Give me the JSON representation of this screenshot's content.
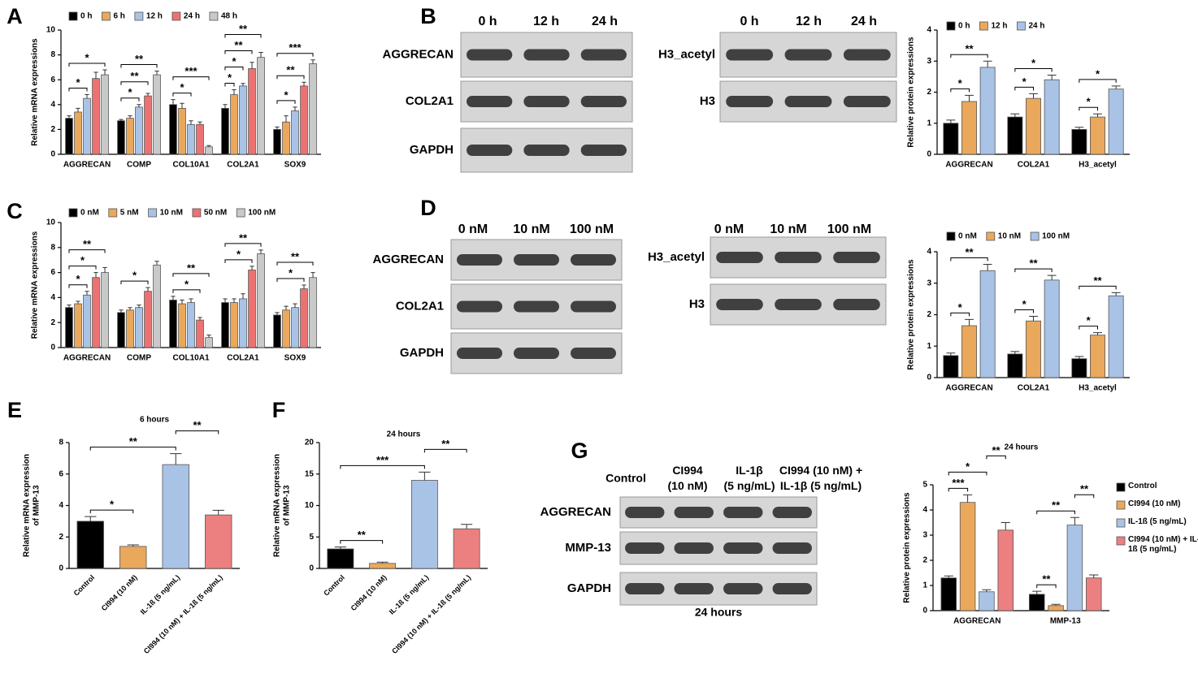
{
  "chart_data": [
    {
      "panel": "A",
      "type": "grouped-bar",
      "ylabel": "Relative mRNA expressions",
      "categories": [
        "AGGRECAN",
        "COMP",
        "COL10A1",
        "COL2A1",
        "SOX9"
      ],
      "series": [
        {
          "name": "0 h",
          "color": "#000000",
          "values": [
            2.9,
            2.7,
            4.0,
            3.7,
            2.0
          ],
          "errors": [
            0.2,
            0.1,
            0.4,
            0.3,
            0.2
          ]
        },
        {
          "name": "6 h",
          "color": "#e9a85c",
          "values": [
            3.4,
            2.9,
            3.7,
            4.8,
            2.6
          ],
          "errors": [
            0.3,
            0.2,
            0.4,
            0.4,
            0.5
          ]
        },
        {
          "name": "12 h",
          "color": "#a9c3e6",
          "values": [
            4.5,
            3.8,
            2.4,
            5.5,
            3.5
          ],
          "errors": [
            0.3,
            0.2,
            0.3,
            0.2,
            0.3
          ]
        },
        {
          "name": "24 h",
          "color": "#ec7272",
          "values": [
            6.1,
            4.7,
            2.4,
            6.9,
            5.5
          ],
          "errors": [
            0.5,
            0.2,
            0.2,
            0.5,
            0.3
          ]
        },
        {
          "name": "48 h",
          "color": "#c9c9c9",
          "values": [
            6.4,
            6.4,
            0.6,
            7.8,
            7.3
          ],
          "errors": [
            0.4,
            0.3,
            0.1,
            0.4,
            0.3
          ]
        }
      ],
      "ylim": [
        0,
        10
      ],
      "yticks": [
        0,
        2,
        4,
        6,
        8,
        10
      ],
      "legend": "top",
      "brackets": [
        {
          "label": "*",
          "group": 0,
          "from": 0,
          "to": 2
        },
        {
          "label": "*",
          "group": 0,
          "from": 0,
          "to": 4
        },
        {
          "label": "*",
          "group": 1,
          "from": 0,
          "to": 2
        },
        {
          "label": "**",
          "group": 1,
          "from": 0,
          "to": 3
        },
        {
          "label": "**",
          "group": 1,
          "from": 0,
          "to": 4
        },
        {
          "label": "*",
          "group": 2,
          "from": 0,
          "to": 2
        },
        {
          "label": "***",
          "group": 2,
          "from": 0,
          "to": 4
        },
        {
          "label": "*",
          "group": 3,
          "from": 0,
          "to": 1
        },
        {
          "label": "*",
          "group": 3,
          "from": 0,
          "to": 2
        },
        {
          "label": "**",
          "group": 3,
          "from": 0,
          "to": 3
        },
        {
          "label": "**",
          "group": 3,
          "from": 0,
          "to": 4
        },
        {
          "label": "*",
          "group": 4,
          "from": 0,
          "to": 2
        },
        {
          "label": "**",
          "group": 4,
          "from": 0,
          "to": 3
        },
        {
          "label": "***",
          "group": 4,
          "from": 0,
          "to": 4
        }
      ]
    },
    {
      "panel": "B",
      "type": "grouped-bar",
      "ylabel": "Relative protein expressions",
      "categories": [
        "AGGRECAN",
        "COL2A1",
        "H3_acetyl"
      ],
      "series": [
        {
          "name": "0 h",
          "color": "#000000",
          "values": [
            1.0,
            1.2,
            0.8
          ],
          "errors": [
            0.1,
            0.1,
            0.07
          ]
        },
        {
          "name": "12 h",
          "color": "#e9a85c",
          "values": [
            1.7,
            1.8,
            1.2
          ],
          "errors": [
            0.2,
            0.15,
            0.1
          ]
        },
        {
          "name": "24 h",
          "color": "#a9c3e6",
          "values": [
            2.8,
            2.4,
            2.1
          ],
          "errors": [
            0.2,
            0.15,
            0.1
          ]
        }
      ],
      "ylim": [
        0,
        4
      ],
      "yticks": [
        0,
        1,
        2,
        3,
        4
      ],
      "legend": "top",
      "brackets": [
        {
          "label": "*",
          "group": 0,
          "from": 0,
          "to": 1
        },
        {
          "label": "**",
          "group": 0,
          "from": 0,
          "to": 2
        },
        {
          "label": "*",
          "group": 1,
          "from": 0,
          "to": 1
        },
        {
          "label": "*",
          "group": 1,
          "from": 0,
          "to": 2
        },
        {
          "label": "*",
          "group": 2,
          "from": 0,
          "to": 1
        },
        {
          "label": "*",
          "group": 2,
          "from": 0,
          "to": 2
        }
      ]
    },
    {
      "panel": "C",
      "type": "grouped-bar",
      "ylabel": "Relative mRNA expressions",
      "categories": [
        "AGGRECAN",
        "COMP",
        "COL10A1",
        "COL2A1",
        "SOX9"
      ],
      "series": [
        {
          "name": "0 nM",
          "color": "#000000",
          "values": [
            3.2,
            2.8,
            3.8,
            3.6,
            2.6
          ],
          "errors": [
            0.2,
            0.2,
            0.3,
            0.3,
            0.2
          ]
        },
        {
          "name": "5 nM",
          "color": "#e9a85c",
          "values": [
            3.5,
            3.0,
            3.5,
            3.6,
            3.0
          ],
          "errors": [
            0.2,
            0.2,
            0.3,
            0.3,
            0.3
          ]
        },
        {
          "name": "10 nM",
          "color": "#a9c3e6",
          "values": [
            4.2,
            3.2,
            3.6,
            3.9,
            3.2
          ],
          "errors": [
            0.3,
            0.2,
            0.3,
            0.4,
            0.3
          ]
        },
        {
          "name": "50 nM",
          "color": "#ec7272",
          "values": [
            5.6,
            4.5,
            2.2,
            6.2,
            4.7
          ],
          "errors": [
            0.4,
            0.3,
            0.2,
            0.3,
            0.3
          ]
        },
        {
          "name": "100 nM",
          "color": "#c9c9c9",
          "values": [
            6.0,
            6.6,
            0.8,
            7.5,
            5.6
          ],
          "errors": [
            0.4,
            0.3,
            0.2,
            0.3,
            0.4
          ]
        }
      ],
      "ylim": [
        0,
        10
      ],
      "yticks": [
        0,
        2,
        4,
        6,
        8,
        10
      ],
      "legend": "top",
      "brackets": [
        {
          "label": "*",
          "group": 0,
          "from": 0,
          "to": 2
        },
        {
          "label": "*",
          "group": 0,
          "from": 0,
          "to": 3
        },
        {
          "label": "**",
          "group": 0,
          "from": 0,
          "to": 4
        },
        {
          "label": "*",
          "group": 1,
          "from": 0,
          "to": 3
        },
        {
          "label": "*",
          "group": 2,
          "from": 0,
          "to": 3
        },
        {
          "label": "**",
          "group": 2,
          "from": 0,
          "to": 4
        },
        {
          "label": "*",
          "group": 3,
          "from": 0,
          "to": 3
        },
        {
          "label": "**",
          "group": 3,
          "from": 0,
          "to": 4
        },
        {
          "label": "*",
          "group": 4,
          "from": 0,
          "to": 3
        },
        {
          "label": "**",
          "group": 4,
          "from": 0,
          "to": 4
        }
      ]
    },
    {
      "panel": "D",
      "type": "grouped-bar",
      "ylabel": "Relative protein expressions",
      "categories": [
        "AGGRECAN",
        "COL2A1",
        "H3_acetyl"
      ],
      "series": [
        {
          "name": "0 nM",
          "color": "#000000",
          "values": [
            0.7,
            0.75,
            0.6
          ],
          "errors": [
            0.08,
            0.08,
            0.07
          ]
        },
        {
          "name": "10 nM",
          "color": "#e9a85c",
          "values": [
            1.65,
            1.8,
            1.35
          ],
          "errors": [
            0.2,
            0.15,
            0.08
          ]
        },
        {
          "name": "100 nM",
          "color": "#a9c3e6",
          "values": [
            3.4,
            3.1,
            2.6
          ],
          "errors": [
            0.2,
            0.15,
            0.1
          ]
        }
      ],
      "ylim": [
        0,
        4
      ],
      "yticks": [
        0,
        1,
        2,
        3,
        4
      ],
      "legend": "top",
      "brackets": [
        {
          "label": "*",
          "group": 0,
          "from": 0,
          "to": 1
        },
        {
          "label": "**",
          "group": 0,
          "from": 0,
          "to": 2
        },
        {
          "label": "*",
          "group": 1,
          "from": 0,
          "to": 1
        },
        {
          "label": "**",
          "group": 1,
          "from": 0,
          "to": 2
        },
        {
          "label": "*",
          "group": 2,
          "from": 0,
          "to": 1
        },
        {
          "label": "**",
          "group": 2,
          "from": 0,
          "to": 2
        }
      ]
    },
    {
      "panel": "E",
      "type": "bar",
      "title": "6 hours",
      "ylabel": [
        "Relative mRNA expression",
        "of MMP-13"
      ],
      "categories": [
        "Control",
        "CI994 (10 nM)",
        "IL-1ß (5 ng/mL)",
        "CI994 (10 nM) + IL-1ß (5 ng/mL)"
      ],
      "values": [
        3.0,
        1.4,
        6.6,
        3.4
      ],
      "errors": [
        0.3,
        0.1,
        0.7,
        0.3
      ],
      "colors": [
        "#000000",
        "#e9a85c",
        "#a9c3e6",
        "#ec8080"
      ],
      "ylim": [
        0,
        8
      ],
      "yticks": [
        0,
        2,
        4,
        6,
        8
      ],
      "brackets": [
        {
          "label": "*",
          "from": 0,
          "to": 1
        },
        {
          "label": "**",
          "from": 0,
          "to": 2
        },
        {
          "label": "**",
          "from": 2,
          "to": 3
        }
      ]
    },
    {
      "panel": "F",
      "type": "bar",
      "title": "24 hours",
      "ylabel": [
        "Relative mRNA expression",
        "of MMP-13"
      ],
      "categories": [
        "Control",
        "CI994 (10 nM)",
        "IL-1ß (5 ng/mL)",
        "CI994 (10 nM) + IL-1ß (5 ng/mL)"
      ],
      "values": [
        3.1,
        0.8,
        14.0,
        6.3
      ],
      "errors": [
        0.3,
        0.2,
        1.3,
        0.7
      ],
      "colors": [
        "#000000",
        "#e9a85c",
        "#a9c3e6",
        "#ec8080"
      ],
      "ylim": [
        0,
        20
      ],
      "yticks": [
        0,
        5,
        10,
        15,
        20
      ],
      "brackets": [
        {
          "label": "**",
          "from": 0,
          "to": 1
        },
        {
          "label": "***",
          "from": 0,
          "to": 2
        },
        {
          "label": "**",
          "from": 2,
          "to": 3
        }
      ]
    },
    {
      "panel": "G",
      "type": "grouped-bar",
      "title": "24 hours",
      "ylabel": "Relative protein expressions",
      "categories": [
        "AGGRECAN",
        "MMP-13"
      ],
      "series": [
        {
          "name": "Control",
          "color": "#000000",
          "values": [
            1.3,
            0.65
          ],
          "errors": [
            0.08,
            0.12
          ]
        },
        {
          "name": "CI994 (10 nM)",
          "color": "#e9a85c",
          "values": [
            4.3,
            0.2
          ],
          "errors": [
            0.3,
            0.05
          ]
        },
        {
          "name": "IL-1ß (5 ng/mL)",
          "color": "#a9c3e6",
          "values": [
            0.75,
            3.4
          ],
          "errors": [
            0.08,
            0.3
          ]
        },
        {
          "name": "CI994 (10 nM) + IL-1ß (5 ng/mL)",
          "color": "#ec8080",
          "values": [
            3.2,
            1.3
          ],
          "errors": [
            0.3,
            0.12
          ]
        }
      ],
      "ylim": [
        0,
        5
      ],
      "yticks": [
        0,
        1,
        2,
        3,
        4,
        5
      ],
      "legend": "right",
      "brackets": [
        {
          "label": "***",
          "group": 0,
          "from": 0,
          "to": 1
        },
        {
          "label": "*",
          "group": 0,
          "from": 0,
          "to": 2
        },
        {
          "label": "**",
          "group": 0,
          "from": 2,
          "to": 3
        },
        {
          "label": "**",
          "group": 1,
          "from": 0,
          "to": 1
        },
        {
          "label": "**",
          "group": 1,
          "from": 0,
          "to": 2
        },
        {
          "label": "**",
          "group": 1,
          "from": 2,
          "to": 3
        }
      ]
    }
  ],
  "blots": [
    {
      "columns": [
        [
          "0 h"
        ],
        [
          "12 h"
        ],
        [
          "24 h"
        ]
      ],
      "rows": [
        "AGGRECAN",
        "COL2A1",
        "GAPDH"
      ]
    },
    {
      "columns": [
        [
          "0 h"
        ],
        [
          "12 h"
        ],
        [
          "24 h"
        ]
      ],
      "rows": [
        "H3_acetyl",
        "H3"
      ]
    },
    {
      "columns": [
        [
          "0 nM"
        ],
        [
          "10 nM"
        ],
        [
          "100 nM"
        ]
      ],
      "rows": [
        "AGGRECAN",
        "COL2A1",
        "GAPDH"
      ]
    },
    {
      "columns": [
        [
          "0 nM"
        ],
        [
          "10 nM"
        ],
        [
          "100 nM"
        ]
      ],
      "rows": [
        "H3_acetyl",
        "H3"
      ]
    },
    {
      "columns": [
        [
          "Control"
        ],
        [
          "CI994",
          "(10 nM)"
        ],
        [
          "IL-1β",
          "(5 ng/mL)"
        ],
        [
          "CI994 (10 nM) +",
          "IL-1β (5 ng/mL)"
        ]
      ],
      "rows": [
        "AGGRECAN",
        "MMP-13",
        "GAPDH"
      ],
      "caption": "24 hours"
    }
  ]
}
